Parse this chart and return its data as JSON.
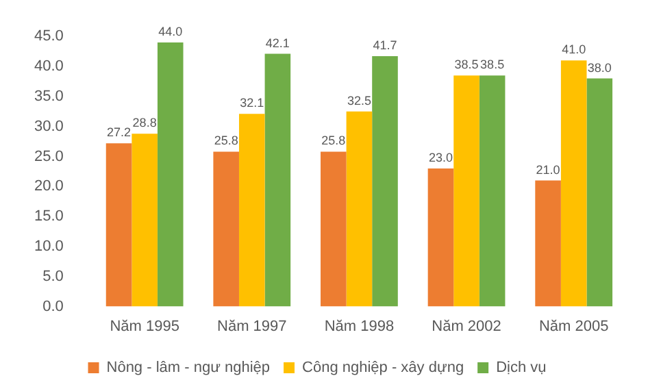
{
  "chart_data": {
    "type": "bar",
    "categories": [
      "Năm 1995",
      "Năm 1997",
      "Năm 1998",
      "Năm 2002",
      "Năm 2005"
    ],
    "series": [
      {
        "name": "Nông - lâm - ngư nghiệp",
        "color": "#ed7d31",
        "values": [
          27.2,
          25.8,
          25.8,
          23.0,
          21.0
        ],
        "value_labels": [
          "27.2",
          "25.8",
          "25.8",
          "23.0",
          "21.0"
        ]
      },
      {
        "name": "Công nghiệp - xây dựng",
        "color": "#ffc000",
        "values": [
          28.8,
          32.1,
          32.5,
          38.5,
          41.0
        ],
        "value_labels": [
          "28.8",
          "32.1",
          "32.5",
          "38.5",
          "41.0"
        ]
      },
      {
        "name": "Dịch vụ",
        "color": "#70ad47",
        "values": [
          44.0,
          42.1,
          41.7,
          38.5,
          38.0
        ],
        "value_labels": [
          "44.0",
          "42.1",
          "41.7",
          "38.5",
          "38.0"
        ]
      }
    ],
    "ylim": [
      0,
      45
    ],
    "yticks": [
      {
        "value": 0,
        "label": "0.0"
      },
      {
        "value": 5,
        "label": "5.0"
      },
      {
        "value": 10,
        "label": "10.0"
      },
      {
        "value": 15,
        "label": "15.0"
      },
      {
        "value": 20,
        "label": "20.0"
      },
      {
        "value": 25,
        "label": "25.0"
      },
      {
        "value": 30,
        "label": "30.0"
      },
      {
        "value": 35,
        "label": "35.0"
      },
      {
        "value": 40,
        "label": "40.0"
      },
      {
        "value": 45,
        "label": "45.0"
      }
    ],
    "grid": false,
    "legend": "bottom"
  }
}
